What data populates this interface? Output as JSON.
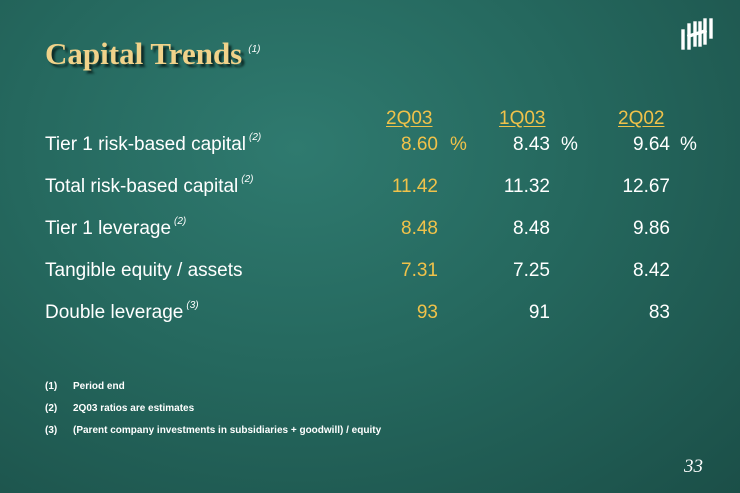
{
  "title": "Capital Trends",
  "title_note": "(1)",
  "columns": [
    "2Q03",
    "1Q03",
    "2Q02"
  ],
  "rows": [
    {
      "label": "Tier 1 risk-based capital",
      "note": "(2)",
      "values": [
        "8.60",
        "8.43",
        "9.64"
      ],
      "unit": "%"
    },
    {
      "label": "Total risk-based capital",
      "note": "(2)",
      "values": [
        "11.42",
        "11.32",
        "12.67"
      ],
      "unit": ""
    },
    {
      "label": "Tier 1 leverage",
      "note": "(2)",
      "values": [
        "8.48",
        "8.48",
        "9.86"
      ],
      "unit": ""
    },
    {
      "label": "Tangible equity / assets",
      "note": "",
      "values": [
        "7.31",
        "7.25",
        "8.42"
      ],
      "unit": ""
    },
    {
      "label": "Double leverage",
      "note": "(3)",
      "values": [
        "93",
        "91",
        "83"
      ],
      "unit": ""
    }
  ],
  "footnotes": [
    {
      "num": "(1)",
      "text": "Period end"
    },
    {
      "num": "(2)",
      "text": "2Q03 ratios are estimates"
    },
    {
      "num": "(3)",
      "text": "(Parent company investments in subsidiaries + goodwill) / equity"
    }
  ],
  "page_number": "33",
  "colors": {
    "title": "#f0d28a",
    "accent": "#f0c24a",
    "background": "#25685e"
  },
  "logo_icon": "huntington-logo-icon"
}
